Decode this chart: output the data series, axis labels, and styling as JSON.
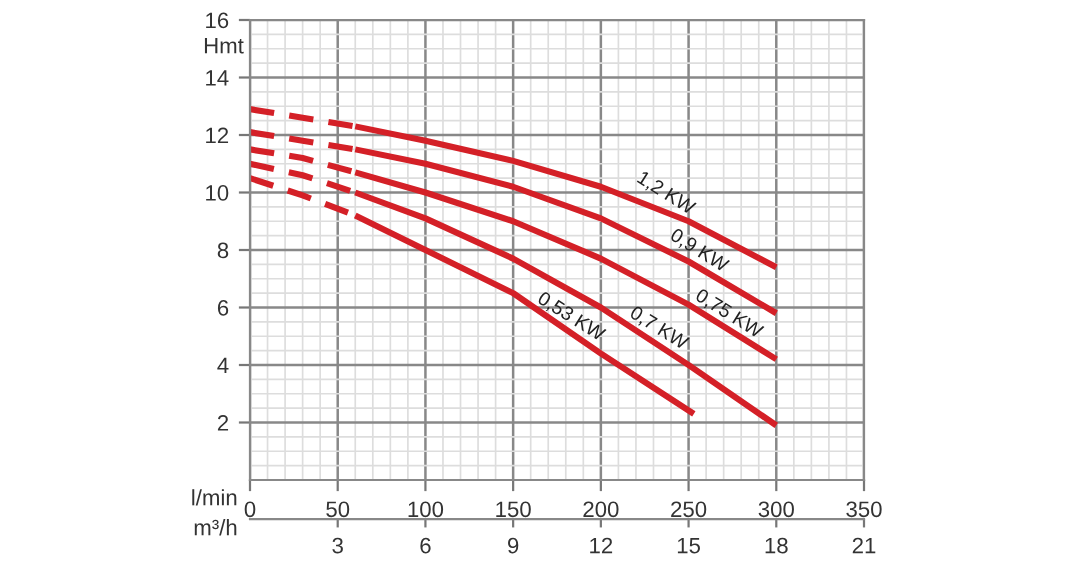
{
  "chart_data": {
    "type": "line",
    "xlabel": "l/min",
    "ylabel": "Hmt",
    "x2label": "m³/h",
    "xlim": [
      0,
      350
    ],
    "xticks": [
      0,
      50,
      100,
      150,
      200,
      250,
      300,
      350
    ],
    "x2lim": [
      0,
      21
    ],
    "x2ticks": [
      3,
      6,
      9,
      12,
      15,
      18,
      21
    ],
    "ylim": [
      0,
      16
    ],
    "yticks": [
      2,
      4,
      6,
      8,
      10,
      12,
      14,
      16
    ],
    "grid": true,
    "marker": "none",
    "series": [
      {
        "color": "#d42027",
        "line_style": "dashed",
        "x": [
          0,
          30,
          60
        ],
        "values": [
          12.9,
          12.6,
          12.3
        ]
      },
      {
        "color": "#d42027",
        "line_style": "solid",
        "x": [
          60,
          100,
          150,
          200,
          250,
          300
        ],
        "values": [
          12.3,
          11.8,
          11.1,
          10.2,
          9.0,
          7.4
        ]
      },
      {
        "color": "#d42027",
        "line_style": "dashed",
        "x": [
          0,
          30,
          60
        ],
        "values": [
          12.1,
          11.8,
          11.5
        ]
      },
      {
        "color": "#d42027",
        "line_style": "solid",
        "x": [
          60,
          100,
          150,
          200,
          250,
          300
        ],
        "values": [
          11.5,
          11.0,
          10.2,
          9.1,
          7.6,
          5.8
        ]
      },
      {
        "color": "#d42027",
        "line_style": "dashed",
        "x": [
          0,
          30,
          60
        ],
        "values": [
          11.5,
          11.2,
          10.7
        ]
      },
      {
        "color": "#d42027",
        "line_style": "solid",
        "x": [
          60,
          100,
          150,
          200,
          250,
          300
        ],
        "values": [
          10.7,
          10.0,
          9.0,
          7.7,
          6.1,
          4.2
        ]
      },
      {
        "color": "#d42027",
        "line_style": "dashed",
        "x": [
          0,
          30,
          60
        ],
        "values": [
          11.0,
          10.6,
          10.0
        ]
      },
      {
        "color": "#d42027",
        "line_style": "solid",
        "x": [
          60,
          100,
          150,
          200,
          250,
          300
        ],
        "values": [
          10.0,
          9.1,
          7.7,
          6.0,
          4.0,
          1.9
        ]
      },
      {
        "color": "#d42027",
        "line_style": "dashed",
        "x": [
          0,
          30,
          60
        ],
        "values": [
          10.5,
          9.9,
          9.2
        ]
      },
      {
        "color": "#d42027",
        "line_style": "solid",
        "x": [
          60,
          100,
          150,
          200,
          253
        ],
        "values": [
          9.2,
          8.0,
          6.5,
          4.4,
          2.3
        ]
      }
    ],
    "annotations": [
      {
        "text": "1,2 KW",
        "x": 234,
        "y": 9.5
      },
      {
        "text": "0,9 KW",
        "x": 253,
        "y": 7.5
      },
      {
        "text": "0,75 KW",
        "x": 270,
        "y": 5.3
      },
      {
        "text": "0,7 KW",
        "x": 230,
        "y": 4.8
      },
      {
        "text": "0,53 KW",
        "x": 180,
        "y": 5.2
      }
    ]
  }
}
